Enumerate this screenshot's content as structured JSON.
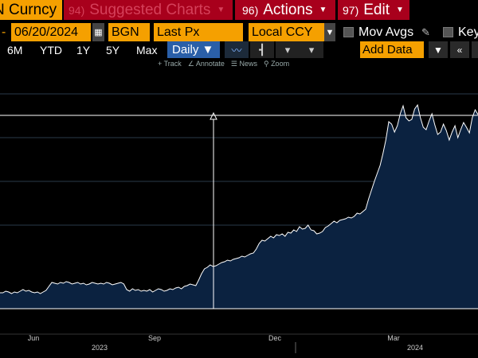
{
  "function_bar": {
    "ticker": "N Curncy",
    "suggested": {
      "num": "94)",
      "label": "Suggested Charts"
    },
    "actions": {
      "num": "96)",
      "label": "Actions"
    },
    "edit": {
      "num": "97)",
      "label": "Edit"
    }
  },
  "params": {
    "date_prefix": "-",
    "end_date": "06/20/2024",
    "source": "BGN",
    "field": "Last Px",
    "currency": "Local CCY",
    "mov_avgs": "Mov Avgs",
    "key": "Key"
  },
  "periods": {
    "items": [
      "6M",
      "YTD",
      "1Y",
      "5Y",
      "Max"
    ],
    "frequency": "Daily ▼",
    "add_data_placeholder": "Add Data"
  },
  "tools": {
    "track": "Track",
    "annotate": "Annotate",
    "news": "News",
    "zoom": "Zoom"
  },
  "colors": {
    "function_red": "#a8001c",
    "bloomberg_amber": "#f5a000",
    "area_fill": "#0b2240",
    "line": "#ffffff",
    "selected_blue": "#2a5fa8"
  },
  "chart_data": {
    "type": "area",
    "x_axis_months": [
      "Jun",
      "Sep",
      "Dec",
      "Mar"
    ],
    "x_axis_years": [
      "2023",
      "2024"
    ],
    "values": [
      20,
      20,
      22,
      21,
      19,
      21,
      20,
      22,
      24,
      22,
      23,
      21,
      20,
      21,
      19,
      21,
      23,
      28,
      33,
      32,
      31,
      33,
      32,
      34,
      33,
      31,
      32,
      33,
      31,
      32,
      30,
      31,
      33,
      32,
      31,
      32,
      31,
      33,
      32,
      30,
      31,
      32,
      33,
      31,
      24,
      22,
      25,
      23,
      24,
      22,
      23,
      22,
      24,
      21,
      23,
      25,
      24,
      22,
      23,
      25,
      24,
      26,
      27,
      25,
      28,
      29,
      31,
      30,
      29,
      36,
      44,
      50,
      52,
      55,
      53,
      54,
      56,
      58,
      59,
      61,
      60,
      62,
      63,
      64,
      66,
      65,
      67,
      69,
      70,
      75,
      82,
      86,
      85,
      88,
      91,
      89,
      93,
      92,
      94,
      91,
      96,
      95,
      99,
      97,
      103,
      100,
      101,
      105,
      99,
      98,
      94,
      95,
      97,
      102,
      104,
      107,
      110,
      108,
      111,
      112,
      113,
      115,
      114,
      116,
      120,
      119,
      122,
      125,
      138,
      149,
      160,
      170,
      180,
      195,
      212,
      235,
      232,
      222,
      230,
      245,
      255,
      240,
      236,
      238,
      251,
      256,
      240,
      228,
      225,
      236,
      245,
      231,
      219,
      222,
      232,
      224,
      212,
      222,
      230,
      215,
      225,
      234,
      228,
      221,
      240,
      250,
      244
    ],
    "reference_line": 243,
    "ylim": [
      0,
      280
    ]
  }
}
